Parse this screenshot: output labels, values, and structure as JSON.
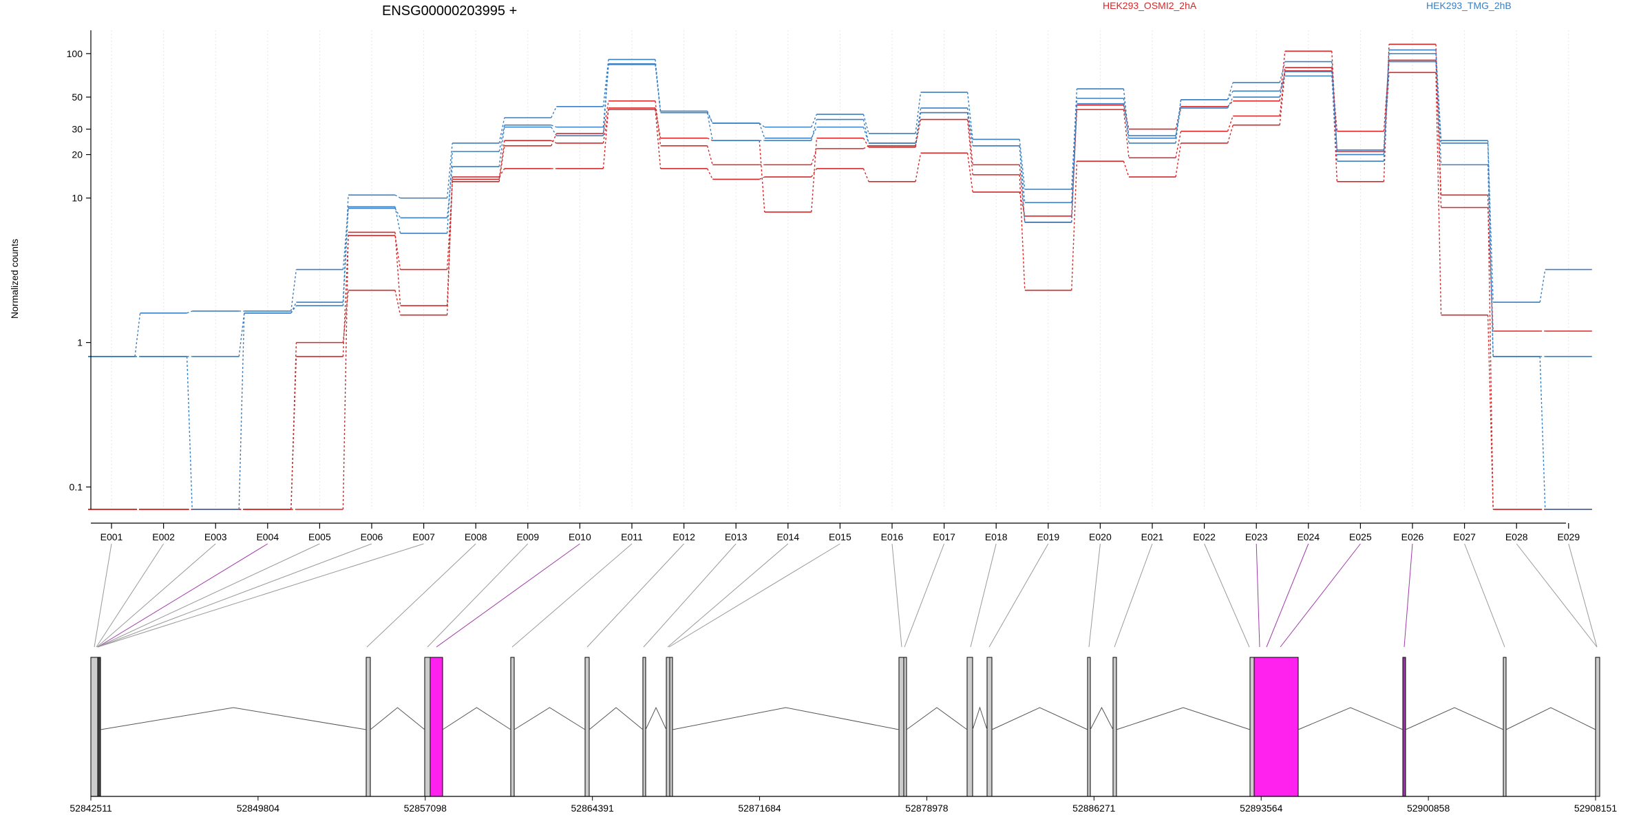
{
  "chart_data": {
    "type": "line",
    "title": "ENSG00000203995 +",
    "ylabel": "Normalized counts",
    "y_scale": "log",
    "y_ticks": [
      0.1,
      1,
      10,
      20,
      30,
      50,
      100
    ],
    "y_tick_labels": [
      "0.1",
      "1",
      "10",
      "20",
      "30",
      "50",
      "100"
    ],
    "categories": [
      "E001",
      "E002",
      "E003",
      "E004",
      "E005",
      "E006",
      "E007",
      "E008",
      "E009",
      "E010",
      "E011",
      "E012",
      "E013",
      "E014",
      "E015",
      "E016",
      "E017",
      "E018",
      "E019",
      "E020",
      "E021",
      "E022",
      "E023",
      "E024",
      "E025",
      "E026",
      "E027",
      "E028",
      "E029"
    ],
    "legend": [
      {
        "label": "HEK293_OSMI2_2hA",
        "color": "#d62728",
        "placement": "top"
      },
      {
        "label": "HEK293_TMG_2hB",
        "color": "#3a7fc1",
        "placement": "top-right"
      }
    ],
    "series": [
      {
        "group": "red",
        "color": "#d62728",
        "values": [
          0.07,
          0.07,
          0.07,
          0.07,
          0.8,
          5.5,
          3.2,
          13,
          23,
          28,
          47,
          23,
          17,
          17,
          22,
          23,
          35,
          14.5,
          2.3,
          18,
          14,
          24,
          32,
          76,
          29,
          90,
          10.5,
          0.07,
          0.07
        ]
      },
      {
        "group": "red",
        "color": "#d62728",
        "values": [
          0.07,
          0.07,
          0.07,
          0.07,
          0.07,
          5.8,
          1.8,
          13.5,
          25,
          24,
          41,
          16,
          13.5,
          14,
          16,
          13,
          20.5,
          11,
          7.5,
          41,
          19,
          29,
          37,
          80,
          13,
          116,
          8.6,
          1.2,
          1.2
        ]
      },
      {
        "group": "red",
        "color": "#d62728",
        "values": [
          0.07,
          0.07,
          0.07,
          0.07,
          1.0,
          2.3,
          1.55,
          14,
          16,
          16,
          42,
          26,
          25,
          8.0,
          26,
          22.5,
          39,
          17,
          6.8,
          44,
          30,
          43,
          47,
          104,
          21,
          74,
          1.55,
          0.07,
          0.07
        ]
      },
      {
        "group": "blue",
        "color": "#3a7fc1",
        "values": [
          0.8,
          0.8,
          0.07,
          1.6,
          1.9,
          10.5,
          10,
          24,
          36,
          43,
          91,
          39,
          33,
          31,
          38,
          28,
          54,
          25.5,
          11.5,
          57,
          26,
          48,
          63,
          88,
          21.5,
          106,
          25,
          1.9,
          3.2
        ]
      },
      {
        "group": "blue",
        "color": "#3a7fc1",
        "values": [
          0.8,
          1.6,
          1.65,
          1.65,
          3.2,
          8.7,
          5.7,
          21,
          32,
          31,
          85,
          40,
          33,
          26,
          31,
          24,
          42,
          23,
          9.3,
          45,
          24,
          48,
          55,
          70,
          18,
          88,
          24,
          0.8,
          0.8
        ]
      },
      {
        "group": "blue",
        "color": "#3a7fc1",
        "values": [
          0.8,
          0.8,
          0.8,
          1.6,
          1.8,
          8.5,
          7.3,
          16.5,
          31,
          27,
          84,
          39,
          25,
          25,
          35,
          24,
          39,
          23,
          6.8,
          49,
          27,
          42,
          50,
          75,
          20,
          100,
          17,
          0.8,
          0.07
        ]
      }
    ],
    "gene_model": {
      "coordinate_labels": [
        "52842511",
        "52849804",
        "52857098",
        "52864391",
        "52871684",
        "52878978",
        "52886271",
        "52893564",
        "52900858",
        "52908151"
      ],
      "coordinate_range": [
        52842511,
        52908151
      ]
    }
  }
}
